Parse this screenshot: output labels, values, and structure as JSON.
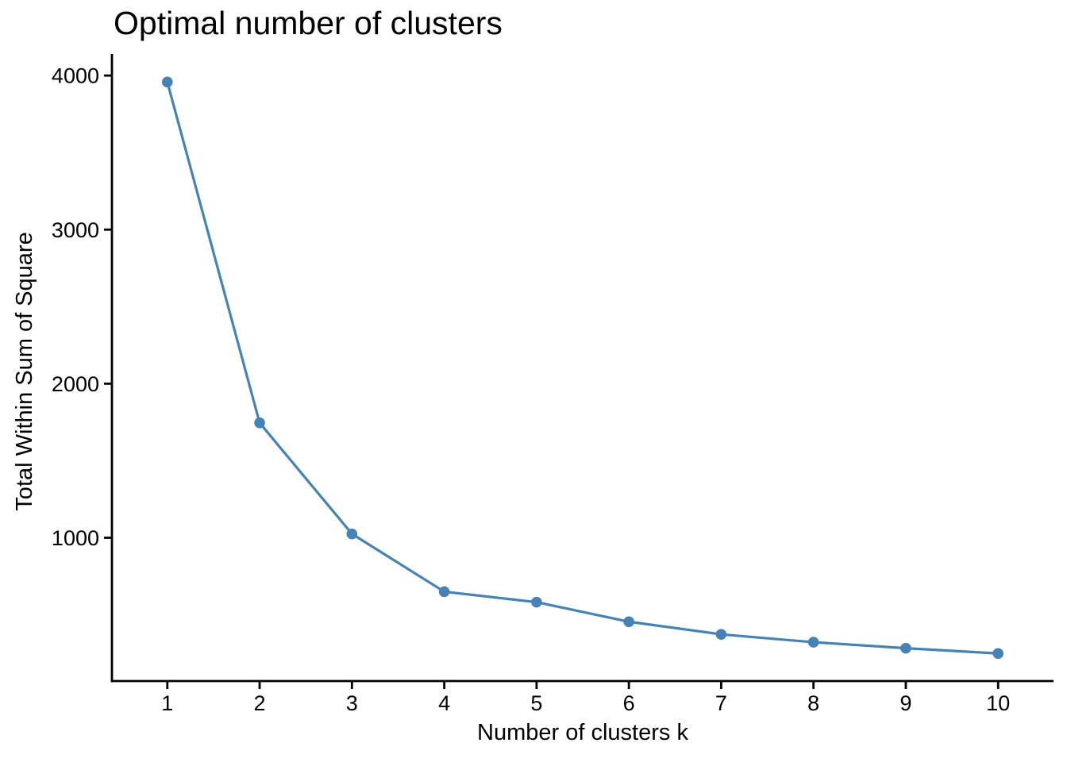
{
  "chart_data": {
    "type": "line",
    "title": "Optimal number of clusters",
    "xlabel": "Number of clusters k",
    "ylabel": "Total Within Sum of Square",
    "x": [
      1,
      2,
      3,
      4,
      5,
      6,
      7,
      8,
      9,
      10
    ],
    "series": [
      {
        "name": "total-within-sum-of-square",
        "values": [
          3958,
          1746,
          1025,
          650,
          582,
          455,
          373,
          322,
          283,
          249
        ]
      }
    ],
    "x_ticks": [
      1,
      2,
      3,
      4,
      5,
      6,
      7,
      8,
      9,
      10
    ],
    "y_ticks": [
      1000,
      2000,
      3000,
      4000
    ],
    "xlim": [
      0.4,
      10.6
    ],
    "ylim": [
      70,
      4140
    ],
    "grid": false,
    "legend": "none",
    "colors": {
      "line": "#4682B4",
      "marker": "#4682B4",
      "axis": "#000000",
      "text": "#000000",
      "background": "#ffffff"
    }
  }
}
